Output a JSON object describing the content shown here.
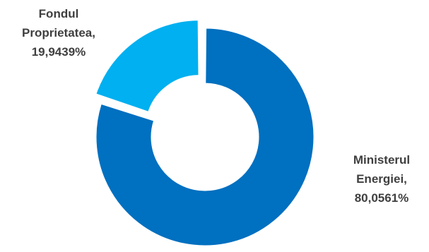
{
  "chart_data": {
    "type": "pie",
    "variant": "donut",
    "slices": [
      {
        "label_lines": [
          "Ministerul",
          "Energiei,",
          "80,0561%"
        ],
        "value": 80.0561,
        "color": "#0070c0",
        "exploded": false
      },
      {
        "label_lines": [
          "Fondul",
          "Proprietatea,",
          "19,9439%"
        ],
        "value": 19.9439,
        "color": "#00b0f0",
        "exploded": true
      }
    ],
    "title": "",
    "legend": "none"
  }
}
